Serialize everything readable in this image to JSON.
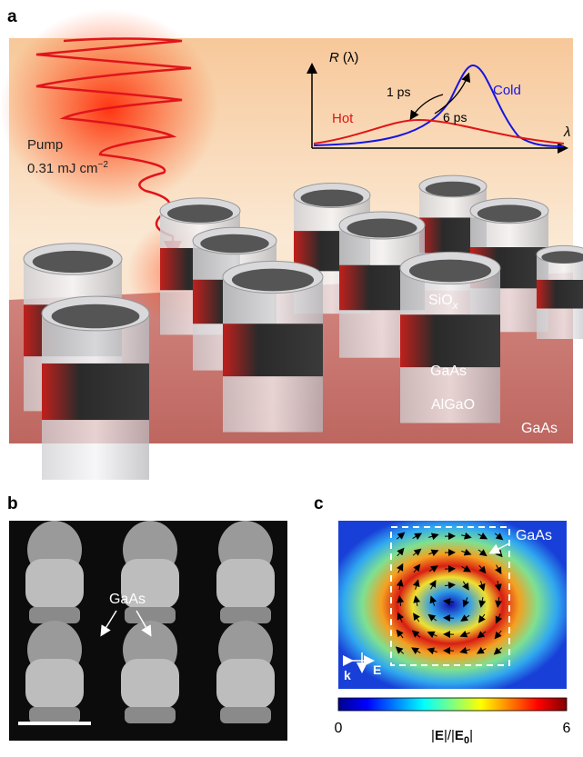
{
  "panel_a": {
    "letter": "a",
    "inset": {
      "y_label": {
        "base": "R",
        "arg": "(λ)"
      },
      "x_label": "λ",
      "fast": "1 ps",
      "slow": "6 ps",
      "cold": "Cold",
      "hot": "Hot"
    },
    "pump": {
      "line1": "Pump",
      "line2": {
        "base": "0.31 mJ cm",
        "sup": "−2"
      }
    },
    "layers": {
      "top": {
        "base": "SiO",
        "sub": "x"
      },
      "middle": "GaAs",
      "bottom": "AlGaO",
      "substrate": "GaAs"
    }
  },
  "panel_b": {
    "letter": "b",
    "label": "GaAs"
  },
  "panel_c": {
    "letter": "c",
    "label": "GaAs",
    "k": "k",
    "e": "E",
    "colorbar": {
      "ticks": [
        0,
        6
      ],
      "label": {
        "pre": "|",
        "bold": "E",
        "mid": "|/|",
        "bold2": "E",
        "sub": "0",
        "post": "|"
      }
    }
  }
}
